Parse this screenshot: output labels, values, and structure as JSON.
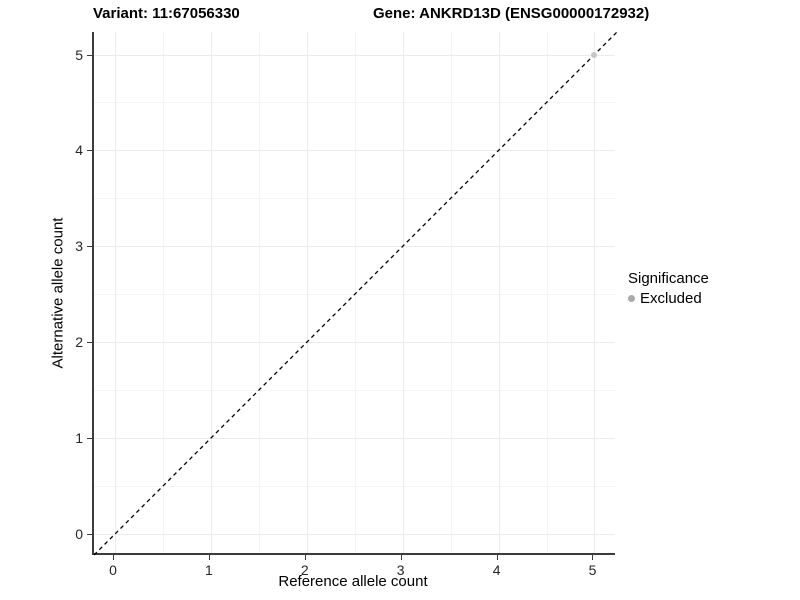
{
  "chart_data": {
    "type": "scatter",
    "title_left": "Variant: 11:67056330",
    "title_right": "Gene: ANKRD13D (ENSG00000172932)",
    "xlabel": "Reference allele count",
    "ylabel": "Alternative allele count",
    "xlim": [
      -0.22,
      5.235
    ],
    "ylim": [
      -0.22,
      5.235
    ],
    "xticks": [
      0,
      1,
      2,
      3,
      4,
      5
    ],
    "yticks": [
      0,
      1,
      2,
      3,
      4,
      5
    ],
    "minor_xticks": [
      0.5,
      1.5,
      2.5,
      3.5,
      4.5
    ],
    "minor_yticks": [
      0.5,
      1.5,
      2.5,
      3.5,
      4.5
    ],
    "grid": true,
    "identity_line": {
      "slope": 1,
      "intercept": 0,
      "style": "dashed",
      "color": "#000000"
    },
    "points": [
      {
        "x": 5,
        "y": 5,
        "significance": "Excluded",
        "color": "#c6c6c6",
        "radius": 3
      }
    ],
    "legend": {
      "title": "Significance",
      "position": "right",
      "items": [
        {
          "label": "Excluded",
          "color": "#aaaaaa"
        }
      ]
    },
    "colors": {
      "grid_major": "#ebebeb",
      "grid_minor": "#f5f5f5",
      "axis_line": "#3c3c3c",
      "tick_text": "#262626"
    }
  }
}
